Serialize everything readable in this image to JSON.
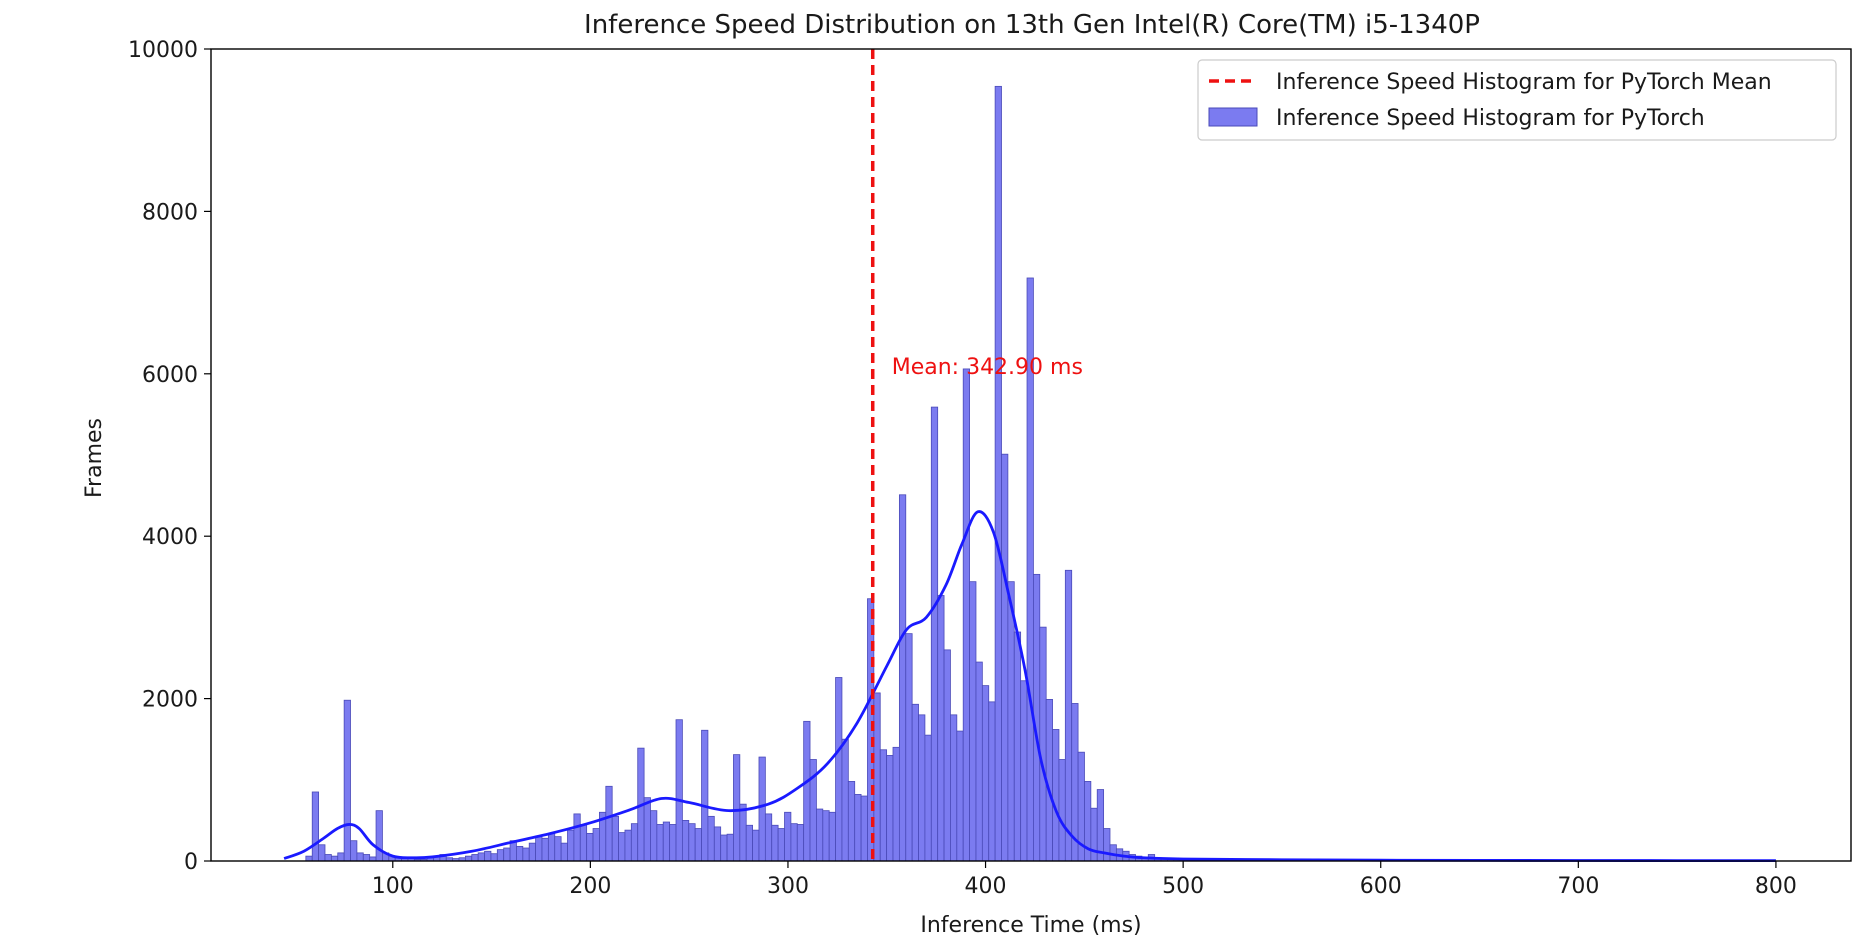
{
  "chart_data": {
    "type": "bar",
    "title": "Inference Speed Distribution on 13th Gen Intel(R) Core(TM) i5-1340P",
    "xlabel": "Inference Time (ms)",
    "ylabel": "Frames",
    "xlim": [
      8,
      838
    ],
    "ylim": [
      0,
      10000
    ],
    "x_ticks": [
      100,
      200,
      300,
      400,
      500,
      600,
      700,
      800
    ],
    "x_tick_labels": [
      "100",
      "200",
      "300",
      "400",
      "500",
      "600",
      "700",
      "800"
    ],
    "y_ticks": [
      0,
      2000,
      4000,
      6000,
      8000,
      10000
    ],
    "y_tick_labels": [
      "0",
      "2000",
      "4000",
      "6000",
      "8000",
      "10000"
    ],
    "grid": false,
    "legend_position": "top-right",
    "legend": [
      {
        "label": "Inference Speed Histogram for PyTorch Mean",
        "kind": "dashed-line"
      },
      {
        "label": "Inference Speed Histogram for PyTorch",
        "kind": "patch"
      }
    ],
    "colors": {
      "bar_fill": "#7b7bf0",
      "bar_edge": "#4a4ab8",
      "kde_line": "#1a1aff",
      "mean_line": "#ee1111",
      "annotation": "#ee1111"
    },
    "histogram": {
      "name": "Inference Speed Histogram for PyTorch",
      "bin_start": 56,
      "bin_width": 3.23,
      "counts": [
        60,
        850,
        200,
        80,
        60,
        100,
        1980,
        250,
        100,
        80,
        50,
        620,
        100,
        60,
        40,
        40,
        30,
        20,
        20,
        40,
        60,
        80,
        40,
        30,
        40,
        60,
        80,
        100,
        120,
        90,
        140,
        160,
        250,
        180,
        160,
        220,
        300,
        280,
        340,
        300,
        220,
        380,
        580,
        450,
        340,
        400,
        600,
        920,
        550,
        350,
        380,
        460,
        1390,
        780,
        620,
        450,
        480,
        450,
        1740,
        500,
        460,
        400,
        1610,
        550,
        420,
        320,
        330,
        1310,
        700,
        440,
        380,
        1280,
        580,
        440,
        400,
        600,
        460,
        450,
        1720,
        1250,
        640,
        620,
        600,
        2260,
        1500,
        980,
        820,
        800,
        3230,
        2070,
        1370,
        1300,
        1400,
        4510,
        2800,
        1930,
        1800,
        1550,
        5590,
        3270,
        2600,
        1800,
        1600,
        6060,
        3440,
        2450,
        2160,
        1960,
        9540,
        5010,
        3440,
        2820,
        2220,
        7180,
        3530,
        2880,
        1990,
        1620,
        1250,
        3580,
        1940,
        1340,
        980,
        650,
        880,
        400,
        200,
        150,
        120,
        80,
        60,
        50,
        80,
        40,
        30,
        25,
        20,
        15,
        10,
        10,
        8,
        6,
        5,
        4,
        3,
        3,
        2,
        2,
        2,
        1
      ]
    },
    "kde": {
      "name": "KDE",
      "x": [
        45,
        55,
        65,
        72,
        78,
        83,
        90,
        100,
        110,
        120,
        140,
        160,
        180,
        200,
        220,
        236,
        250,
        270,
        290,
        305,
        320,
        335,
        350,
        360,
        370,
        380,
        388,
        396,
        404,
        412,
        420,
        428,
        436,
        444,
        452,
        460,
        470,
        480,
        500,
        550,
        600,
        650,
        700,
        750,
        800
      ],
      "y": [
        30,
        120,
        280,
        400,
        450,
        400,
        200,
        60,
        40,
        50,
        120,
        230,
        340,
        470,
        630,
        770,
        720,
        620,
        700,
        900,
        1200,
        1700,
        2400,
        2850,
        3000,
        3400,
        3900,
        4300,
        4050,
        3250,
        2350,
        1250,
        600,
        300,
        150,
        100,
        60,
        40,
        25,
        15,
        10,
        8,
        6,
        5,
        5
      ]
    },
    "mean": {
      "value": 342.9,
      "label": "Mean: 342.90 ms"
    }
  }
}
